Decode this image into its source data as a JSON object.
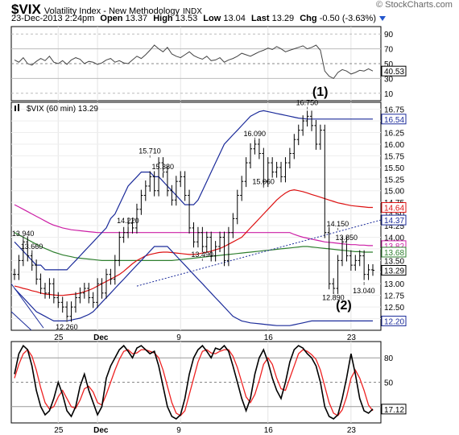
{
  "header": {
    "symbol": "$VIX",
    "description": "Volatility Index - New Methodology",
    "exchange": "INDX",
    "brand": "© StockCharts.com",
    "timestamp": "23-Dec-2013 2:24pm",
    "open_label": "Open",
    "open": "13.37",
    "high_label": "High",
    "high": "13.53",
    "low_label": "Low",
    "low": "13.04",
    "last_label": "Last",
    "last": "13.29",
    "chg_label": "Chg",
    "chg": "-0.50 (-3.63%)"
  },
  "colors": {
    "price": "#000000",
    "bollinger": "#1b2b9a",
    "ma_red": "#dd1111",
    "ma_green": "#2f7f2f",
    "ma_magenta": "#cc1fa5",
    "trend_dotted": "#1b2b9a",
    "rsi": "#444444",
    "stoch_k": "#000000",
    "stoch_d": "#ee2222"
  },
  "chart_data": [
    {
      "type": "line",
      "panel": "rsi",
      "y_ticks": [
        "90",
        "70",
        "50",
        "30",
        "10"
      ],
      "ylim": [
        0,
        100
      ],
      "last_value_label": "40.53",
      "annotation": "(1)",
      "values": [
        55,
        52,
        58,
        50,
        48,
        53,
        57,
        54,
        60,
        52,
        50,
        54,
        49,
        55,
        58,
        56,
        50,
        53,
        52,
        49,
        51,
        55,
        57,
        52,
        54,
        51,
        50,
        55,
        60,
        57,
        62,
        68,
        75,
        70,
        66,
        72,
        63,
        60,
        58,
        62,
        66,
        61,
        58,
        56,
        60,
        54,
        55,
        58,
        52,
        55,
        57,
        60,
        64,
        62,
        60,
        63,
        66,
        68,
        71,
        69,
        73,
        70,
        66,
        68,
        70,
        72,
        74,
        70,
        72,
        75,
        68,
        40,
        33,
        30,
        38,
        42,
        40,
        36,
        38,
        41,
        40,
        43,
        40
      ]
    },
    {
      "type": "line",
      "panel": "price",
      "legend": "$VIX (60 min) 13.29",
      "ylim": [
        12.0,
        16.9
      ],
      "y_ticks": [
        "16.75",
        "16.50",
        "16.25",
        "16.00",
        "15.75",
        "15.50",
        "15.25",
        "15.00",
        "14.75",
        "14.50",
        "14.25",
        "14.00",
        "13.75",
        "13.50",
        "13.25",
        "13.00",
        "12.75",
        "12.50",
        "12.25"
      ],
      "x_ticks": [
        "25",
        "Dec",
        "9",
        "16",
        "23"
      ],
      "price": [
        13.2,
        13.5,
        13.9,
        13.6,
        13.4,
        13.1,
        12.9,
        12.8,
        13.0,
        12.7,
        12.6,
        12.5,
        12.3,
        12.5,
        12.7,
        12.8,
        12.9,
        12.7,
        12.6,
        13.0,
        12.8,
        13.2,
        13.1,
        13.5,
        14.0,
        14.1,
        14.3,
        14.2,
        14.6,
        14.9,
        15.1,
        15.3,
        15.0,
        15.6,
        15.4,
        15.0,
        14.8,
        15.2,
        15.3,
        14.9,
        14.2,
        13.9,
        14.1,
        13.8,
        14.0,
        13.6,
        13.8,
        14.0,
        13.5,
        14.1,
        14.4,
        14.9,
        15.2,
        15.6,
        15.9,
        16.0,
        15.8,
        15.2,
        15.6,
        15.4,
        15.5,
        15.3,
        15.6,
        15.8,
        16.1,
        16.3,
        16.5,
        16.6,
        16.4,
        16.0,
        16.3,
        14.1,
        13.0,
        12.9,
        13.5,
        13.9,
        13.6,
        13.4,
        13.5,
        13.6,
        13.2,
        13.3,
        13.29
      ],
      "bollinger_upper": [
        13.9,
        13.8,
        13.7,
        13.6,
        13.5,
        13.4,
        13.4,
        13.3,
        13.3,
        13.3,
        13.3,
        13.3,
        13.3,
        13.4,
        13.5,
        13.6,
        13.7,
        13.8,
        13.9,
        14.0,
        14.1,
        14.2,
        14.4,
        14.5,
        14.7,
        14.9,
        15.1,
        15.2,
        15.3,
        15.4,
        15.4,
        15.4,
        15.3,
        15.3,
        15.2,
        15.1,
        15.0,
        14.9,
        14.8,
        14.7,
        14.7,
        14.7,
        14.8,
        15.0,
        15.2,
        15.4,
        15.6,
        15.8,
        16.0,
        16.1,
        16.2,
        16.3,
        16.4,
        16.5,
        16.6,
        16.65,
        16.7,
        16.72,
        16.7,
        16.68,
        16.66,
        16.64,
        16.62,
        16.6,
        16.58,
        16.56,
        16.55,
        16.54,
        16.54,
        16.54,
        16.54,
        16.54,
        16.54,
        16.54,
        16.54,
        16.54,
        16.54,
        16.54,
        16.54,
        16.54,
        16.54,
        16.54,
        16.54
      ],
      "bollinger_lower": [
        12.9,
        12.8,
        12.7,
        12.6,
        12.5,
        12.4,
        12.35,
        12.3,
        12.25,
        12.2,
        12.2,
        12.2,
        12.2,
        12.22,
        12.24,
        12.26,
        12.3,
        12.34,
        12.4,
        12.5,
        12.6,
        12.7,
        12.8,
        12.9,
        13.0,
        13.1,
        13.2,
        13.3,
        13.4,
        13.5,
        13.6,
        13.7,
        13.8,
        13.8,
        13.8,
        13.8,
        13.7,
        13.6,
        13.5,
        13.4,
        13.3,
        13.2,
        13.1,
        13.0,
        12.9,
        12.8,
        12.7,
        12.6,
        12.5,
        12.4,
        12.3,
        12.25,
        12.2,
        12.18,
        12.16,
        12.15,
        12.14,
        12.13,
        12.12,
        12.11,
        12.1,
        12.1,
        12.1,
        12.1,
        12.12,
        12.14,
        12.16,
        12.18,
        12.2,
        12.2,
        12.2,
        12.2,
        12.2,
        12.2,
        12.2,
        12.2,
        12.2,
        12.2,
        12.2,
        12.2,
        12.2,
        12.2,
        12.2
      ],
      "ma_red": [
        12.95,
        12.93,
        12.9,
        12.88,
        12.85,
        12.83,
        12.8,
        12.78,
        12.77,
        12.76,
        12.75,
        12.75,
        12.76,
        12.77,
        12.78,
        12.8,
        12.83,
        12.86,
        12.9,
        12.95,
        13.0,
        13.05,
        13.1,
        13.15,
        13.2,
        13.27,
        13.35,
        13.43,
        13.5,
        13.55,
        13.6,
        13.63,
        13.65,
        13.67,
        13.68,
        13.68,
        13.67,
        13.66,
        13.65,
        13.64,
        13.63,
        13.63,
        13.64,
        13.66,
        13.68,
        13.7,
        13.73,
        13.76,
        13.8,
        13.85,
        13.9,
        13.95,
        14.0,
        14.1,
        14.2,
        14.3,
        14.4,
        14.5,
        14.6,
        14.7,
        14.8,
        14.88,
        14.95,
        15.0,
        15.02,
        15.0,
        14.98,
        14.95,
        14.92,
        14.89,
        14.86,
        14.83,
        14.8,
        14.77,
        14.74,
        14.72,
        14.7,
        14.68,
        14.67,
        14.66,
        14.65,
        14.64,
        14.64
      ],
      "ma_green": [
        14.1,
        14.05,
        14.0,
        13.95,
        13.9,
        13.85,
        13.8,
        13.76,
        13.72,
        13.68,
        13.65,
        13.62,
        13.6,
        13.58,
        13.56,
        13.55,
        13.54,
        13.53,
        13.52,
        13.51,
        13.5,
        13.5,
        13.5,
        13.5,
        13.5,
        13.5,
        13.5,
        13.5,
        13.5,
        13.5,
        13.5,
        13.5,
        13.5,
        13.5,
        13.5,
        13.5,
        13.5,
        13.51,
        13.52,
        13.53,
        13.54,
        13.55,
        13.56,
        13.57,
        13.58,
        13.59,
        13.6,
        13.61,
        13.62,
        13.63,
        13.64,
        13.65,
        13.66,
        13.67,
        13.68,
        13.69,
        13.7,
        13.71,
        13.72,
        13.73,
        13.74,
        13.75,
        13.76,
        13.77,
        13.78,
        13.79,
        13.8,
        13.8,
        13.79,
        13.78,
        13.77,
        13.76,
        13.75,
        13.74,
        13.73,
        13.72,
        13.71,
        13.7,
        13.69,
        13.69,
        13.68,
        13.68,
        13.68
      ],
      "ma_magenta": [
        14.7,
        14.65,
        14.6,
        14.55,
        14.5,
        14.45,
        14.4,
        14.35,
        14.3,
        14.26,
        14.23,
        14.2,
        14.18,
        14.16,
        14.15,
        14.14,
        14.13,
        14.12,
        14.11,
        14.1,
        14.1,
        14.1,
        14.1,
        14.1,
        14.1,
        14.1,
        14.1,
        14.1,
        14.1,
        14.1,
        14.1,
        14.1,
        14.1,
        14.1,
        14.1,
        14.1,
        14.1,
        14.1,
        14.1,
        14.1,
        14.1,
        14.1,
        14.1,
        14.1,
        14.1,
        14.1,
        14.1,
        14.1,
        14.1,
        14.1,
        14.1,
        14.1,
        14.1,
        14.1,
        14.1,
        14.1,
        14.1,
        14.1,
        14.1,
        14.1,
        14.1,
        14.1,
        14.1,
        14.1,
        14.06,
        14.03,
        14.0,
        13.98,
        13.96,
        13.94,
        13.92,
        13.9,
        13.89,
        13.88,
        13.87,
        13.86,
        13.85,
        13.84,
        13.84,
        13.83,
        13.83,
        13.82,
        13.82
      ],
      "dotted_trend": [
        [
          28,
          12.95
        ],
        [
          58,
          14.37
        ]
      ],
      "annotations": [
        {
          "text": "13.940",
          "i": 2,
          "y": 13.94
        },
        {
          "text": "13.660",
          "i": 4,
          "y": 13.66
        },
        {
          "text": "12.260",
          "i": 12,
          "y": 12.26
        },
        {
          "text": "14.220",
          "i": 26,
          "y": 14.22
        },
        {
          "text": "15.710",
          "i": 31,
          "y": 15.71
        },
        {
          "text": "15.380",
          "i": 34,
          "y": 15.38
        },
        {
          "text": "13.490",
          "i": 43,
          "y": 13.49
        },
        {
          "text": "16.090",
          "i": 55,
          "y": 16.09
        },
        {
          "text": "15.060",
          "i": 57,
          "y": 15.06
        },
        {
          "text": "16.750",
          "i": 67,
          "y": 16.75
        },
        {
          "text": "14.150",
          "i": 74,
          "y": 14.15
        },
        {
          "text": "13.850",
          "i": 76,
          "y": 13.85
        },
        {
          "text": "12.890",
          "i": 73,
          "y": 12.89
        },
        {
          "text": "13.040",
          "i": 80,
          "y": 13.04
        }
      ],
      "wave_label": "(2)",
      "right_labels": [
        {
          "text": "16.54",
          "y": 16.54,
          "color": "#1b2b9a"
        },
        {
          "text": "14.64",
          "y": 14.64,
          "color": "#dd1111"
        },
        {
          "text": "14.37",
          "y": 14.37,
          "color": "#1b2b9a"
        },
        {
          "text": "13.82",
          "y": 13.82,
          "color": "#cc1fa5"
        },
        {
          "text": "13.68",
          "y": 13.68,
          "color": "#2f7f2f"
        },
        {
          "text": "13.29",
          "y": 13.29,
          "color": "#000000"
        },
        {
          "text": "12.20",
          "y": 12.2,
          "color": "#1b2b9a"
        }
      ]
    },
    {
      "type": "line",
      "panel": "stochastic",
      "ylim": [
        0,
        100
      ],
      "y_ticks": [
        "80",
        "50",
        "20"
      ],
      "last_value_label": "17.12",
      "k": [
        60,
        85,
        95,
        90,
        70,
        40,
        20,
        10,
        15,
        30,
        50,
        35,
        15,
        8,
        20,
        45,
        60,
        40,
        25,
        10,
        20,
        55,
        70,
        80,
        90,
        95,
        88,
        80,
        92,
        95,
        90,
        85,
        88,
        70,
        45,
        20,
        8,
        5,
        10,
        30,
        60,
        80,
        90,
        95,
        88,
        80,
        92,
        90,
        95,
        88,
        70,
        50,
        30,
        15,
        30,
        60,
        80,
        90,
        75,
        55,
        40,
        30,
        50,
        75,
        90,
        95,
        92,
        85,
        80,
        70,
        50,
        20,
        8,
        5,
        10,
        30,
        55,
        85,
        60,
        30,
        15,
        12,
        17
      ],
      "d": [
        55,
        72,
        85,
        90,
        82,
        65,
        43,
        25,
        17,
        20,
        32,
        40,
        30,
        20,
        18,
        28,
        42,
        45,
        38,
        25,
        22,
        35,
        50,
        65,
        78,
        88,
        90,
        85,
        86,
        90,
        90,
        88,
        86,
        80,
        65,
        45,
        25,
        12,
        9,
        15,
        35,
        55,
        75,
        88,
        90,
        86,
        85,
        88,
        90,
        90,
        82,
        68,
        50,
        32,
        25,
        35,
        52,
        72,
        80,
        72,
        55,
        42,
        40,
        55,
        70,
        85,
        90,
        88,
        84,
        78,
        65,
        45,
        25,
        12,
        9,
        16,
        32,
        55,
        65,
        55,
        40,
        22,
        15
      ]
    }
  ]
}
